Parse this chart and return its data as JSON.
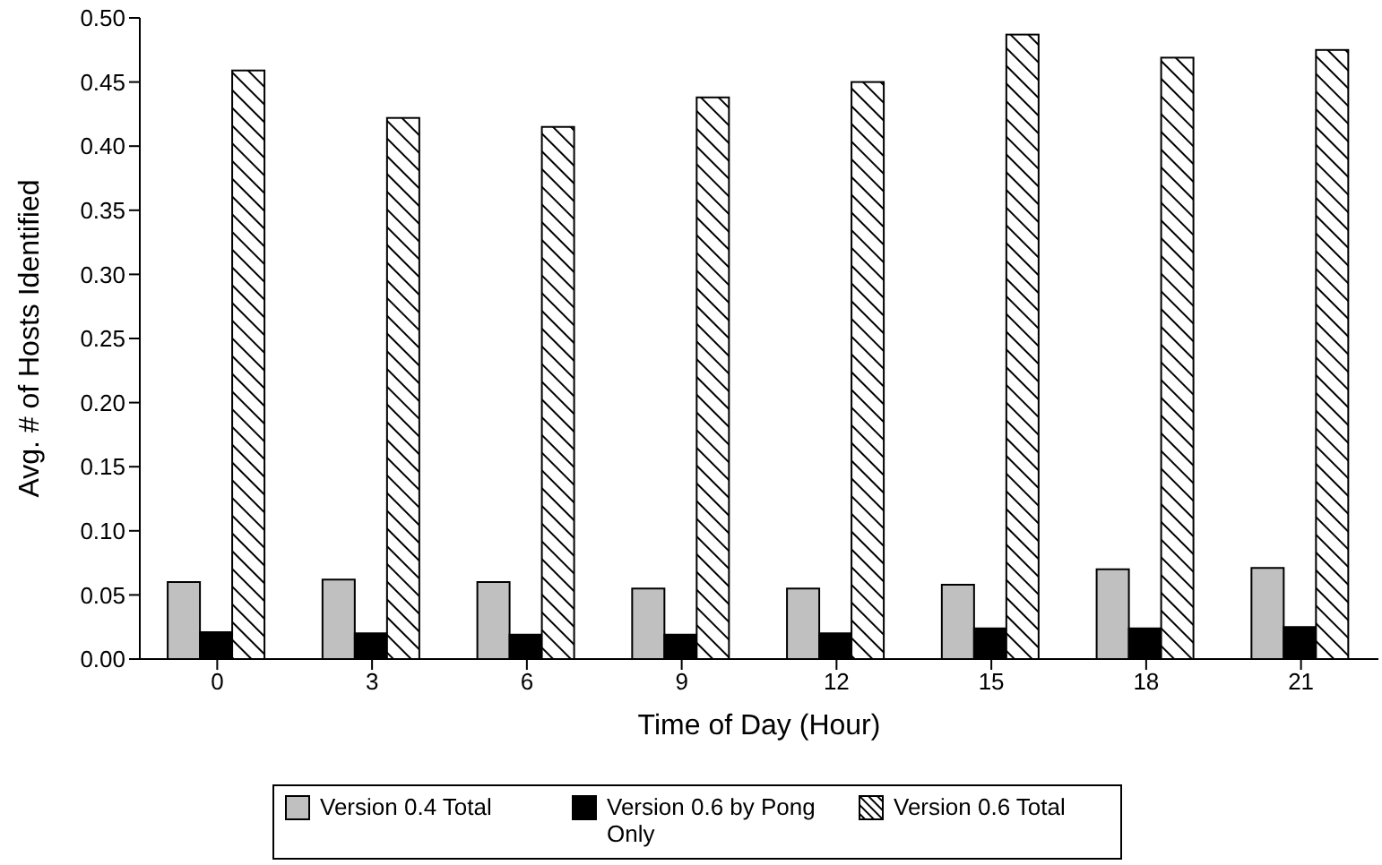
{
  "chart_data": {
    "type": "bar",
    "xlabel": "Time of Day (Hour)",
    "ylabel": "Avg. # of Hosts Identified",
    "categories": [
      "0",
      "3",
      "6",
      "9",
      "12",
      "15",
      "18",
      "21"
    ],
    "series": [
      {
        "name": "Version 0.4 Total",
        "color": "#c0c0c0",
        "values": [
          0.06,
          0.062,
          0.06,
          0.055,
          0.055,
          0.058,
          0.07,
          0.071
        ]
      },
      {
        "name": "Version 0.6 by Pong Only",
        "color": "#000000",
        "values": [
          0.021,
          0.02,
          0.019,
          0.019,
          0.02,
          0.024,
          0.024,
          0.025
        ]
      },
      {
        "name": "Version 0.6 Total",
        "color": "#000000",
        "values": [
          0.459,
          0.422,
          0.415,
          0.438,
          0.45,
          0.487,
          0.469,
          0.475
        ]
      }
    ],
    "ylim": [
      0,
      0.5
    ],
    "yticks": [
      {
        "value": 0,
        "label": "0.00"
      },
      {
        "value": 0.05,
        "label": "0.05"
      },
      {
        "value": 0.1,
        "label": "0.10"
      },
      {
        "value": 0.15,
        "label": "0.15"
      },
      {
        "value": 0.2,
        "label": "0.20"
      },
      {
        "value": 0.25,
        "label": "0.25"
      },
      {
        "value": 0.3,
        "label": "0.30"
      },
      {
        "value": 0.35,
        "label": "0.35"
      },
      {
        "value": 0.4,
        "label": "0.40"
      },
      {
        "value": 0.45,
        "label": "0.45"
      },
      {
        "value": 0.5,
        "label": "0.50"
      }
    ],
    "grid": false,
    "legend": "bottom"
  }
}
